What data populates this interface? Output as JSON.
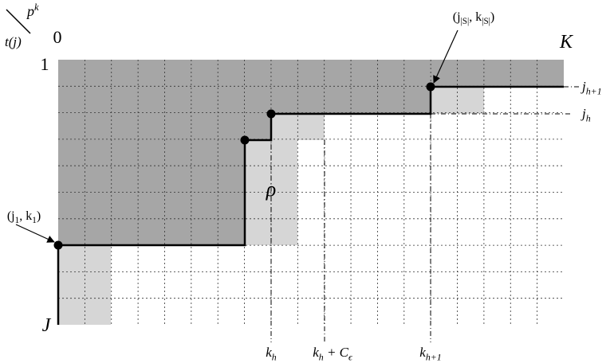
{
  "corner": {
    "top": [
      "p",
      "k"
    ],
    "bottom": [
      "t(j)"
    ]
  },
  "axis": {
    "origin": [
      "0"
    ],
    "one": [
      "1"
    ],
    "last_column": [
      "K"
    ],
    "last_row": [
      "J"
    ]
  },
  "points": {
    "first": [
      "(j",
      "1",
      ", k",
      "1",
      ")"
    ],
    "last": [
      "(j",
      "|S|",
      ", k",
      "|S|",
      ")"
    ]
  },
  "region_label": [
    "ρ"
  ],
  "row_labels": [
    [
      "j",
      "h+1"
    ],
    [
      "j",
      "h"
    ]
  ],
  "col_labels": [
    [
      "k",
      "h"
    ],
    [
      "k",
      "h",
      " + C",
      "ϵ"
    ],
    [
      "k",
      "h+1"
    ]
  ]
}
